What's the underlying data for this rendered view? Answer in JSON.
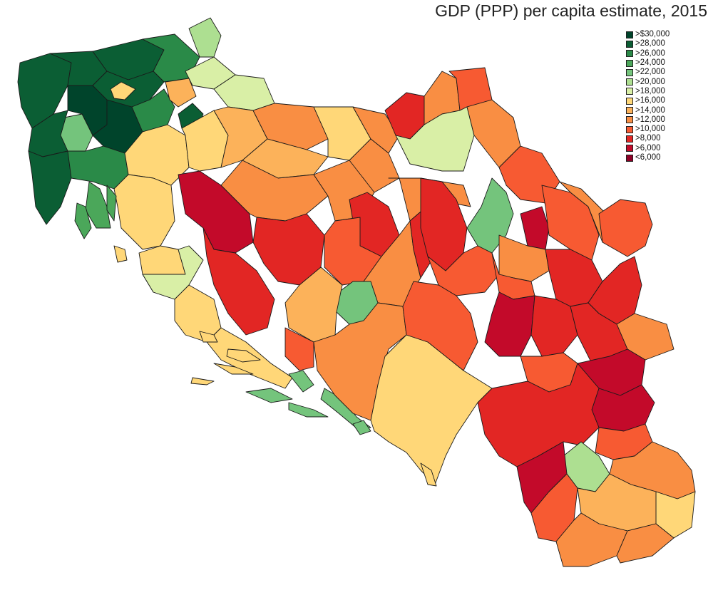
{
  "title": "GDP (PPP) per capita estimate, 2015",
  "legend": [
    {
      "label": ">$30,000",
      "color": "#00442b"
    },
    {
      "label": ">28,000",
      "color": "#0b5e34"
    },
    {
      "label": ">26,000",
      "color": "#2a8a48"
    },
    {
      "label": ">24,000",
      "color": "#4ba75a"
    },
    {
      "label": ">22,000",
      "color": "#74c47c"
    },
    {
      "label": ">20,000",
      "color": "#addf91"
    },
    {
      "label": ">18,000",
      "color": "#d9efa6"
    },
    {
      "label": ">16,000",
      "color": "#ffd778"
    },
    {
      "label": ">14,000",
      "color": "#fcb25a"
    },
    {
      "label": ">12,000",
      "color": "#f98e43"
    },
    {
      "label": ">10,000",
      "color": "#f75a32"
    },
    {
      "label": ">8,000",
      "color": "#e22624"
    },
    {
      "label": ">6,000",
      "color": "#c30a2a"
    },
    {
      "label": "<6,000",
      "color": "#8e0026"
    }
  ]
}
